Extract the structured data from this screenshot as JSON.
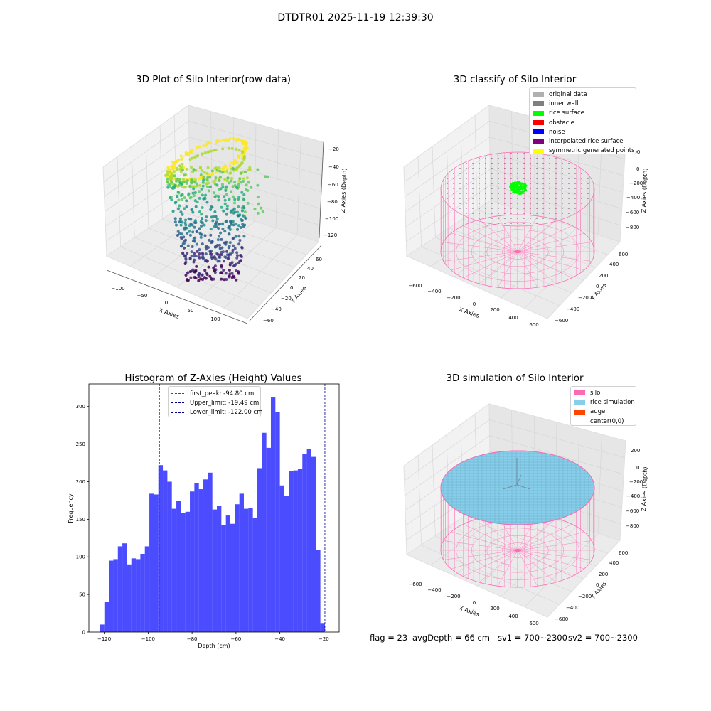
{
  "figure_title": "DTDTR01 2025-11-19 12:39:30",
  "colors": {
    "viridis": [
      "#440154",
      "#472d7b",
      "#3b528b",
      "#2c728e",
      "#21918c",
      "#28ae80",
      "#5ec962",
      "#addc30",
      "#fde725"
    ],
    "silo_pink": "#ff69b4",
    "rice_green": "#00ff00",
    "rice_blue": "#87ceeb",
    "hist_blue": "#0000ff",
    "peak_red": "#ff0000",
    "limit_blue": "#00008b",
    "auger": "#ff4500"
  },
  "panels": {
    "raw": {
      "title": "3D Plot of Silo Interior(row data)",
      "x_label": "X Axies",
      "y_label": "Y Axies",
      "z_label": "Z Axies (Depth)",
      "x_ticks": [
        "−100",
        "−50",
        "0",
        "50",
        "100"
      ],
      "y_ticks": [
        "−60",
        "−40",
        "−20",
        "0",
        "20",
        "40",
        "60"
      ],
      "z_ticks": [
        "−20",
        "−40",
        "−60",
        "−80",
        "−100",
        "−120"
      ]
    },
    "classify": {
      "title": "3D classify of Silo Interior",
      "x_label": "X Axies",
      "y_label": "Y Axies",
      "z_label": "Z Axies (Depth)",
      "x_ticks": [
        "−600",
        "−400",
        "−200",
        "0",
        "200",
        "400",
        "600"
      ],
      "y_ticks": [
        "−600",
        "−400",
        "−200",
        "0",
        "200",
        "400",
        "600"
      ],
      "z_ticks": [
        "200",
        "0",
        "−200",
        "−400",
        "−600",
        "−800"
      ],
      "legend": [
        {
          "label": "original data",
          "color": "#b0b0b0"
        },
        {
          "label": "inner wall",
          "color": "#808080"
        },
        {
          "label": "rice surface",
          "color": "#00ff00"
        },
        {
          "label": "obstacle",
          "color": "#ff0000"
        },
        {
          "label": "noise",
          "color": "#0000ff"
        },
        {
          "label": "interpolated rice surface",
          "color": "#800080"
        },
        {
          "label": "symmetric generated points",
          "color": "#ffff00"
        }
      ]
    },
    "simulation": {
      "title": "3D simulation of Silo Interior",
      "x_label": "X Axies",
      "y_label": "Y Axies",
      "z_label": "Z Axies (Depth)",
      "x_ticks": [
        "−600",
        "−400",
        "−200",
        "0",
        "200",
        "400",
        "600"
      ],
      "y_ticks": [
        "−600",
        "−400",
        "−200",
        "0",
        "200",
        "400",
        "600"
      ],
      "z_ticks": [
        "200",
        "0",
        "−200",
        "−400",
        "−600",
        "−800"
      ],
      "legend": [
        {
          "label": "silo",
          "color": "#ff69b4"
        },
        {
          "label": "rice simulation",
          "color": "#87ceeb"
        },
        {
          "label": "auger",
          "color": "#ff4500"
        },
        {
          "label": "center(0,0)",
          "color": "#ffffff"
        }
      ]
    }
  },
  "status": {
    "flag": "flag = 23",
    "avg_depth": "avgDepth = 66 cm",
    "sv1": "sv1 = 700~2300",
    "sv2": "sv2 = 700~2300"
  },
  "chart_data": {
    "type": "bar",
    "title": "Histogram of Z-Axies (Height) Values",
    "xlabel": "Depth (cm)",
    "ylabel": "Frequency",
    "xlim": [
      -127,
      -13
    ],
    "ylim": [
      0,
      330
    ],
    "x_ticks": [
      -120,
      -100,
      -80,
      -60,
      -40,
      -20
    ],
    "x_tick_labels": [
      "−120",
      "−100",
      "−80",
      "−60",
      "−40",
      "−20"
    ],
    "y_ticks": [
      0,
      50,
      100,
      150,
      200,
      250,
      300
    ],
    "bin_start": -122.0,
    "bin_width": 2.05,
    "values": [
      10,
      40,
      95,
      97,
      114,
      118,
      90,
      98,
      97,
      104,
      114,
      184,
      183,
      222,
      215,
      200,
      164,
      174,
      158,
      160,
      187,
      198,
      190,
      203,
      212,
      163,
      168,
      142,
      155,
      144,
      170,
      184,
      164,
      165,
      152,
      218,
      265,
      245,
      312,
      293,
      195,
      181,
      214,
      215,
      217,
      237,
      243,
      233,
      109,
      12
    ],
    "reference_lines": [
      {
        "name": "first_peak",
        "value": -94.8,
        "label": "first_peak: -94.80 cm",
        "color": "#ff0000"
      },
      {
        "name": "upper_limit",
        "value": -19.49,
        "label": "Upper_limit: -19.49 cm",
        "color": "#00008b"
      },
      {
        "name": "lower_limit",
        "value": -122.0,
        "label": "Lower_limit: -122.00 cm",
        "color": "#00008b"
      }
    ],
    "legend_position": "upper center"
  }
}
